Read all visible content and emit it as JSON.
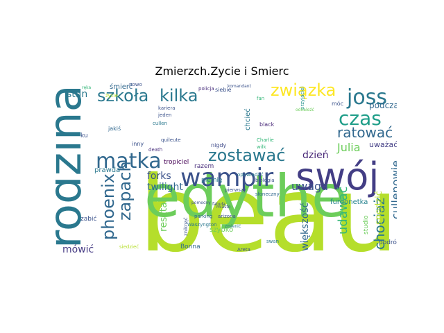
{
  "title": "Zmierzch.Zycie i Smierc",
  "words": [
    {
      "text": "beau",
      "color": "#b5de2b"
    },
    {
      "text": "edythe",
      "color": "#6ccd5a"
    },
    {
      "text": "swój",
      "color": "#433e85"
    },
    {
      "text": "rodzina",
      "color": "#2a788e"
    },
    {
      "text": "wampir",
      "color": "#3b528b"
    },
    {
      "text": "matka",
      "color": "#31688e"
    },
    {
      "text": "szkoła",
      "color": "#2a788e"
    },
    {
      "text": "kilka",
      "color": "#2a788e"
    },
    {
      "text": "związka",
      "color": "#fde725"
    },
    {
      "text": "joss",
      "color": "#2a788e"
    },
    {
      "text": "czas",
      "color": "#1f9e89"
    },
    {
      "text": "zostawać",
      "color": "#2a788e"
    },
    {
      "text": "ratować",
      "color": "#31688e"
    },
    {
      "text": "zapach",
      "color": "#31688e"
    },
    {
      "text": "phoenix",
      "color": "#31688e"
    },
    {
      "text": "cullenowie",
      "color": "#31688e"
    },
    {
      "text": "chociaż",
      "color": "#2a788e"
    },
    {
      "text": "udawać",
      "color": "#35b779"
    },
    {
      "text": "uwaga",
      "color": "#3b528b"
    },
    {
      "text": "Julia",
      "color": "#6ccd5a"
    },
    {
      "text": "forks",
      "color": "#3b528b"
    },
    {
      "text": "twilight",
      "color": "#31688e"
    },
    {
      "text": "mówić",
      "color": "#443983"
    },
    {
      "text": "stan",
      "color": "#2a788e"
    },
    {
      "text": "dzień",
      "color": "#482878"
    },
    {
      "text": "większość",
      "color": "#31688e"
    },
    {
      "text": "reszta",
      "color": "#6ccd5a"
    },
    {
      "text": "spędzić",
      "color": "#b5de2b"
    },
    {
      "text": "podczas",
      "color": "#31688e"
    },
    {
      "text": "uważać",
      "color": "#433e85"
    },
    {
      "text": "prawda",
      "color": "#2a788e"
    },
    {
      "text": "furgonetka",
      "color": "#26828e"
    },
    {
      "text": "plemię",
      "color": "#2a788e"
    },
    {
      "text": "tropiciel",
      "color": "#440154"
    },
    {
      "text": "razem",
      "color": "#472d7b"
    },
    {
      "text": "nigdy",
      "color": "#3e4a89"
    },
    {
      "text": "szybko",
      "color": "#6ccd5a"
    },
    {
      "text": "Bonna",
      "color": "#31688e"
    },
    {
      "text": "black",
      "color": "#482878"
    },
    {
      "text": "chcieć",
      "color": "#2a788e"
    },
    {
      "text": "Charlie",
      "color": "#35b779"
    },
    {
      "text": "wilk",
      "color": "#35b779"
    },
    {
      "text": "śmierć",
      "color": "#31688e"
    },
    {
      "text": "móc",
      "color": "#3b528b"
    },
    {
      "text": "ku",
      "color": "#3b528b"
    },
    {
      "text": "zabić",
      "color": "#3b528b"
    },
    {
      "text": "podróż",
      "color": "#3b528b"
    },
    {
      "text": "jakiś",
      "color": "#31688e"
    },
    {
      "text": "studio",
      "color": "#6ccd5a"
    },
    {
      "text": "Areta",
      "color": "#3b528b"
    },
    {
      "text": "biologia",
      "color": "#3b528b"
    },
    {
      "text": "słoneczny",
      "color": "#31688e"
    },
    {
      "text": "opowiadać",
      "color": "#2a788e"
    },
    {
      "text": "pierwszy",
      "color": "#3b528b"
    },
    {
      "text": "parking",
      "color": "#31688e"
    },
    {
      "text": "Waszyngton",
      "color": "#2a788e"
    },
    {
      "text": "przyjaciel",
      "color": "#21918c"
    },
    {
      "text": "wydawać",
      "color": "#31688e"
    },
    {
      "text": "cullen",
      "color": "#2a788e"
    },
    {
      "text": "jeden",
      "color": "#3b528b"
    },
    {
      "text": "kariera",
      "color": "#3b528b"
    },
    {
      "text": "policja",
      "color": "#472d7b"
    },
    {
      "text": "komandant",
      "color": "#3b528b"
    },
    {
      "text": "nowo",
      "color": "#3b528b"
    },
    {
      "text": "siebie",
      "color": "#3b528b"
    },
    {
      "text": "ręka",
      "color": "#35b779"
    },
    {
      "text": "zniknąć",
      "color": "#3b528b"
    },
    {
      "text": "swan",
      "color": "#2a788e"
    },
    {
      "text": "quileute",
      "color": "#3b528b"
    },
    {
      "text": "death",
      "color": "#472d7b"
    },
    {
      "text": "fan",
      "color": "#35b779"
    },
    {
      "text": "inny",
      "color": "#3b528b"
    },
    {
      "text": "siedzieć",
      "color": "#b5de2b"
    },
    {
      "text": "pomocny",
      "color": "#3b528b"
    },
    {
      "text": "arizona",
      "color": "#3b528b"
    },
    {
      "text": "odnaleźć",
      "color": "#6ccd5a"
    },
    {
      "text": "miasto",
      "color": "#3b528b"
    },
    {
      "text": "zmienić",
      "color": "#2a788e"
    },
    {
      "text": "życie",
      "color": "#b5de2b"
    },
    {
      "text": "fabuła",
      "color": "#3b528b"
    }
  ]
}
